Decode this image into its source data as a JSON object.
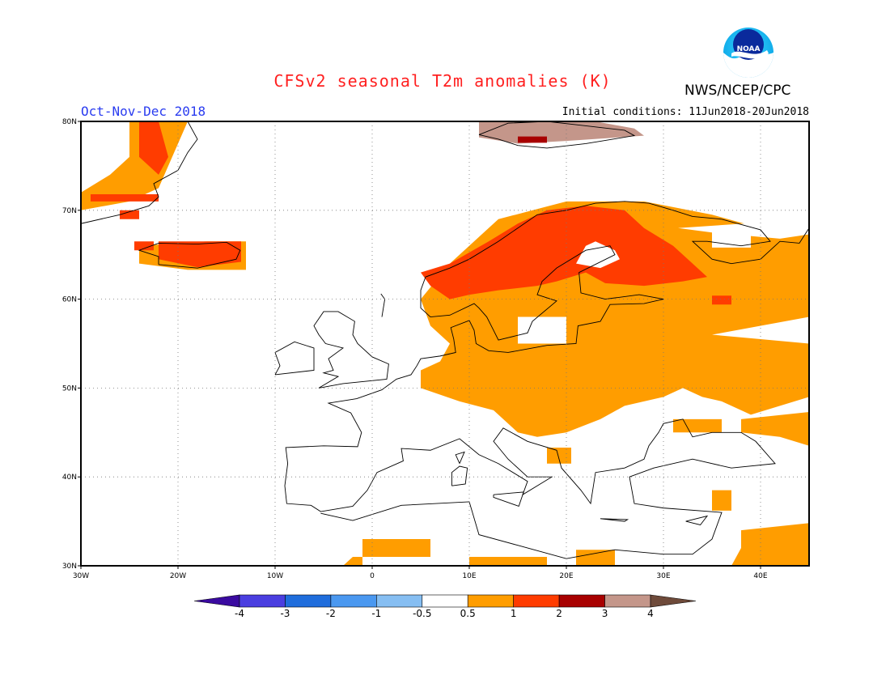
{
  "header": {
    "title": "CFSv2 seasonal T2m anomalies (K)",
    "agency": "NWS/NCEP/CPC",
    "season": "Oct-Nov-Dec 2018",
    "initial_conditions": "Initial conditions: 11Jun2018-20Jun2018",
    "logo_text": "NOAA"
  },
  "map": {
    "projection": "lat-lon",
    "lon_range": [
      -30,
      45
    ],
    "lat_range": [
      30,
      80
    ],
    "lat_ticks": [
      "80N",
      "70N",
      "60N",
      "50N",
      "40N",
      "30N"
    ],
    "lon_ticks": [
      "30W",
      "20W",
      "10W",
      "0",
      "10E",
      "20E",
      "30E",
      "40E"
    ],
    "grid": "dotted"
  },
  "colorbar": {
    "labels": [
      "-4",
      "-3",
      "-2",
      "-1",
      "-0.5",
      "0.5",
      "1",
      "2",
      "3",
      "4"
    ],
    "colors": [
      "#3a0aa0",
      "#4a3ee0",
      "#1f6ddc",
      "#4a98f0",
      "#86bef2",
      "#ffffff",
      "#ff9d00",
      "#ff3c00",
      "#a80000",
      "#c4968a",
      "#6e4a3a"
    ]
  },
  "chart_data": {
    "type": "heatmap",
    "variable": "T2m anomaly",
    "units": "K",
    "anomaly_regions": [
      {
        "region": "Greenland east coast",
        "level": "1-2 K"
      },
      {
        "region": "Iceland",
        "level": "1-2 K"
      },
      {
        "region": "Svalbard",
        "level": "2-4 K"
      },
      {
        "region": "Scandinavia / Finland / NW Russia",
        "level": "1-2 K"
      },
      {
        "region": "Central and Eastern Europe / Western Russia",
        "level": "0.5-1 K"
      },
      {
        "region": "Black Sea / Caucasus",
        "level": "0.5-1 K"
      },
      {
        "region": "North Africa / Middle East (partial)",
        "level": "0.5-1 K"
      }
    ]
  }
}
